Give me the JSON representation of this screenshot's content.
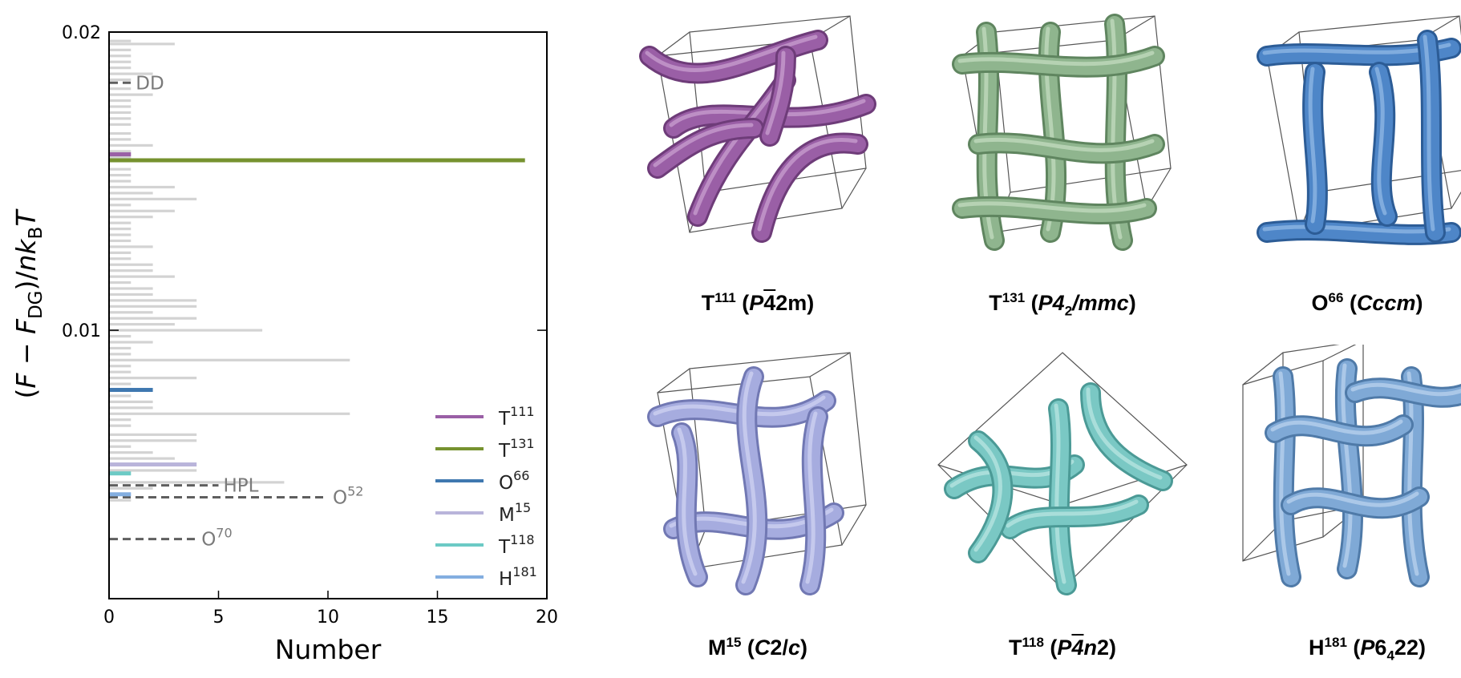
{
  "chart_data": {
    "type": "bar",
    "orientation": "horizontal",
    "xlabel": "Number",
    "ylabel": "(F − F_DG)/nk_BT",
    "ylabel_parts": {
      "pre": "(",
      "F": "F",
      "minus": " − ",
      "FDG": "F",
      "sub_DG": "DG",
      "mid": ")/",
      "n": "n",
      "k": "k",
      "sub_B": "B",
      "T": "T"
    },
    "xlim": [
      0,
      20
    ],
    "ylim": [
      0.001,
      0.02
    ],
    "xticks": [
      "0",
      "5",
      "10",
      "15",
      "20"
    ],
    "yticks": [
      "0.01",
      "0.02"
    ],
    "grid": false,
    "legend_position": "lower-right",
    "background_color": "#d3d3d3",
    "background_bars": [
      {
        "y": 0.0197,
        "x": 1
      },
      {
        "y": 0.0196,
        "x": 3
      },
      {
        "y": 0.0194,
        "x": 1
      },
      {
        "y": 0.0192,
        "x": 1
      },
      {
        "y": 0.019,
        "x": 1
      },
      {
        "y": 0.0188,
        "x": 1
      },
      {
        "y": 0.0186,
        "x": 2
      },
      {
        "y": 0.0184,
        "x": 1
      },
      {
        "y": 0.0181,
        "x": 1
      },
      {
        "y": 0.0179,
        "x": 2
      },
      {
        "y": 0.0177,
        "x": 1
      },
      {
        "y": 0.0175,
        "x": 1
      },
      {
        "y": 0.0173,
        "x": 1
      },
      {
        "y": 0.0171,
        "x": 1
      },
      {
        "y": 0.0169,
        "x": 1
      },
      {
        "y": 0.0166,
        "x": 1
      },
      {
        "y": 0.0164,
        "x": 1
      },
      {
        "y": 0.0162,
        "x": 2
      },
      {
        "y": 0.016,
        "x": 1
      },
      {
        "y": 0.0158,
        "x": 1
      },
      {
        "y": 0.0154,
        "x": 1
      },
      {
        "y": 0.0152,
        "x": 1
      },
      {
        "y": 0.015,
        "x": 1
      },
      {
        "y": 0.0148,
        "x": 3
      },
      {
        "y": 0.0146,
        "x": 2
      },
      {
        "y": 0.0144,
        "x": 4
      },
      {
        "y": 0.0142,
        "x": 1
      },
      {
        "y": 0.014,
        "x": 3
      },
      {
        "y": 0.0138,
        "x": 2
      },
      {
        "y": 0.0136,
        "x": 1
      },
      {
        "y": 0.0134,
        "x": 1
      },
      {
        "y": 0.0132,
        "x": 1
      },
      {
        "y": 0.013,
        "x": 1
      },
      {
        "y": 0.0128,
        "x": 2
      },
      {
        "y": 0.0126,
        "x": 1
      },
      {
        "y": 0.0124,
        "x": 1
      },
      {
        "y": 0.0122,
        "x": 2
      },
      {
        "y": 0.012,
        "x": 2
      },
      {
        "y": 0.0118,
        "x": 3
      },
      {
        "y": 0.0116,
        "x": 1
      },
      {
        "y": 0.0114,
        "x": 2
      },
      {
        "y": 0.0112,
        "x": 2
      },
      {
        "y": 0.011,
        "x": 4
      },
      {
        "y": 0.0108,
        "x": 4
      },
      {
        "y": 0.0106,
        "x": 2
      },
      {
        "y": 0.0104,
        "x": 4
      },
      {
        "y": 0.0102,
        "x": 3
      },
      {
        "y": 0.01,
        "x": 7
      },
      {
        "y": 0.0098,
        "x": 1
      },
      {
        "y": 0.0096,
        "x": 2
      },
      {
        "y": 0.0094,
        "x": 1
      },
      {
        "y": 0.0092,
        "x": 1
      },
      {
        "y": 0.009,
        "x": 11
      },
      {
        "y": 0.0088,
        "x": 1
      },
      {
        "y": 0.0086,
        "x": 1
      },
      {
        "y": 0.0084,
        "x": 4
      },
      {
        "y": 0.0082,
        "x": 1
      },
      {
        "y": 0.0078,
        "x": 1
      },
      {
        "y": 0.0076,
        "x": 2
      },
      {
        "y": 0.0074,
        "x": 2
      },
      {
        "y": 0.0072,
        "x": 11
      },
      {
        "y": 0.007,
        "x": 1
      },
      {
        "y": 0.0068,
        "x": 1
      },
      {
        "y": 0.0065,
        "x": 4
      },
      {
        "y": 0.0063,
        "x": 4
      },
      {
        "y": 0.0061,
        "x": 1
      },
      {
        "y": 0.0059,
        "x": 2
      },
      {
        "y": 0.0057,
        "x": 3
      },
      {
        "y": 0.0053,
        "x": 4
      },
      {
        "y": 0.0049,
        "x": 8
      },
      {
        "y": 0.0047,
        "x": 2
      },
      {
        "y": 0.0043,
        "x": 1
      }
    ],
    "highlighted_series": [
      {
        "name": "T",
        "sup": "111",
        "y": 0.0159,
        "x": 1,
        "color": "#9a5fa6"
      },
      {
        "name": "T",
        "sup": "131",
        "y": 0.0157,
        "x": 19,
        "color": "#76922f"
      },
      {
        "name": "O",
        "sup": "66",
        "y": 0.008,
        "x": 2,
        "color": "#3f78b0"
      },
      {
        "name": "M",
        "sup": "15",
        "y": 0.0055,
        "x": 4,
        "color": "#b9b4da"
      },
      {
        "name": "T",
        "sup": "118",
        "y": 0.0052,
        "x": 1,
        "color": "#6ccac5"
      },
      {
        "name": "H",
        "sup": "181",
        "y": 0.0045,
        "x": 1,
        "color": "#83aee0"
      }
    ],
    "reference_lines": [
      {
        "label": "DD",
        "sup": "",
        "y": 0.0183,
        "x_end": 1
      },
      {
        "label": "HPL",
        "sup": "",
        "y": 0.0048,
        "x_end": 5
      },
      {
        "label": "O",
        "sup": "52",
        "y": 0.0044,
        "x_end": 10
      },
      {
        "label": "O",
        "sup": "70",
        "y": 0.003,
        "x_end": 4
      }
    ]
  },
  "structures": [
    {
      "id": "T111",
      "name": "T",
      "sup": "111",
      "sg": [
        {
          "t": "P",
          "i": true
        },
        {
          "t": "4",
          "ovl": true
        },
        {
          "t": "2m"
        }
      ],
      "color": "#9a5fa6",
      "dark": "#6e3c79",
      "light": "#c59bcd"
    },
    {
      "id": "T131",
      "name": "T",
      "sup": "131",
      "sg": [
        {
          "t": "P4",
          "i": true
        },
        {
          "t": "2",
          "sub": true
        },
        {
          "t": "/mmc",
          "i": true
        }
      ],
      "color": "#8fb58e",
      "dark": "#5f855f",
      "light": "#bfd9bd"
    },
    {
      "id": "O66",
      "name": "O",
      "sup": "66",
      "sg": [
        {
          "t": "Cccm",
          "i": true
        }
      ],
      "color": "#4e86c8",
      "dark": "#2c5c96",
      "light": "#8db5e3"
    },
    {
      "id": "M15",
      "name": "M",
      "sup": "15",
      "sg": [
        {
          "t": "C",
          "i": true
        },
        {
          "t": "2/"
        },
        {
          "t": "c",
          "i": true
        }
      ],
      "color": "#a6acdf",
      "dark": "#7178b3",
      "light": "#cdd1f0"
    },
    {
      "id": "T118",
      "name": "T",
      "sup": "118",
      "sg": [
        {
          "t": "P",
          "i": true
        },
        {
          "t": "4",
          "i": true,
          "ovl": true
        },
        {
          "t": "n",
          "i": true
        },
        {
          "t": "2"
        }
      ],
      "color": "#7ac8c4",
      "dark": "#4b9a96",
      "light": "#b5e3e0"
    },
    {
      "id": "H181",
      "name": "H",
      "sup": "181",
      "sg": [
        {
          "t": "P",
          "i": true
        },
        {
          "t": "6"
        },
        {
          "t": "4",
          "sub": true
        },
        {
          "t": "22"
        }
      ],
      "color": "#7fa9d6",
      "dark": "#4f7aa8",
      "light": "#b6d0ec"
    }
  ]
}
